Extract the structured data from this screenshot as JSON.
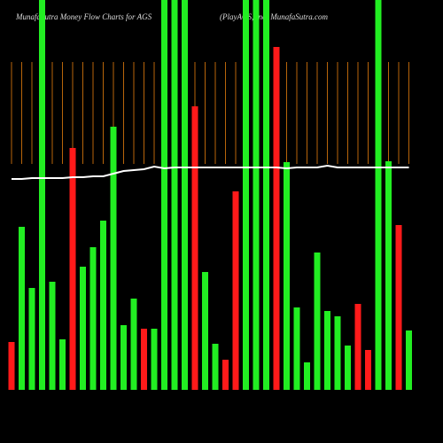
{
  "chart_data": {
    "type": "bar",
    "title": "MunafaSutra  Money Flow  Charts for AGS",
    "subtitle": "(PlayAGS, Inc)  MunafaSutra.com",
    "categories": [
      null,
      null,
      null,
      null,
      null,
      null,
      null,
      null,
      null,
      null,
      null,
      null,
      null,
      null,
      null,
      null,
      null,
      null,
      null,
      null,
      null,
      null,
      null,
      null,
      null,
      null,
      null,
      null,
      null,
      null,
      null,
      null,
      null,
      null,
      null,
      null,
      null,
      null,
      null,
      null
    ],
    "ylim": [
      0,
      440
    ],
    "series": [
      {
        "name": "money flow",
        "colors": [
          "#ff1a1a",
          "#22ee22",
          "#22ee22",
          "#22ee22",
          "#22ee22",
          "#22ee22",
          "#ff1a1a",
          "#22ee22",
          "#22ee22",
          "#22ee22",
          "#22ee22",
          "#22ee22",
          "#22ee22",
          "#ff1a1a",
          "#22ee22",
          "#22ee22",
          "#22ee22",
          "#22ee22",
          "#ff1a1a",
          "#22ee22",
          "#22ee22",
          "#ff1a1a",
          "#ff1a1a",
          "#22ee22",
          "#22ee22",
          "#22ee22",
          "#ff1a1a",
          "#22ee22",
          "#22ee22",
          "#22ee22",
          "#22ee22",
          "#22ee22",
          "#22ee22",
          "#22ee22",
          "#ff1a1a",
          "#ff1a1a",
          "#22ee22",
          "#22ee22",
          "#ff1a1a",
          "#22ee22"
        ],
        "values": [
          54,
          184,
          115,
          440,
          122,
          57,
          273,
          139,
          161,
          191,
          297,
          73,
          103,
          69,
          69,
          440,
          440,
          440,
          320,
          133,
          52,
          34,
          224,
          440,
          440,
          440,
          387,
          257,
          93,
          31,
          155,
          89,
          83,
          50,
          97,
          45,
          440,
          258,
          186,
          67
        ]
      },
      {
        "name": "trend",
        "type": "line",
        "color": "#ffffff",
        "values": [
          238,
          238,
          239,
          239,
          239,
          239,
          240,
          240,
          241,
          241,
          244,
          247,
          248,
          249,
          252,
          250,
          251,
          251,
          251,
          251,
          251,
          251,
          251,
          251,
          251,
          251,
          251,
          250,
          251,
          251,
          251,
          253,
          251,
          251,
          251,
          251,
          251,
          251,
          251,
          251
        ]
      }
    ]
  }
}
